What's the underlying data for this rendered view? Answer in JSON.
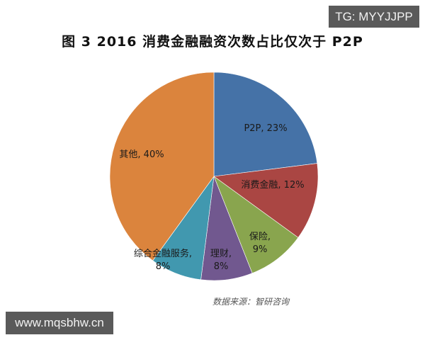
{
  "title": "图 3   2016 消费金融融资次数占比仅次于  P2P",
  "watermarks": {
    "top_right": "TG: MYYJJPP",
    "bottom_left": "www.mqsbhw.cn"
  },
  "source": "数据来源：智研咨询",
  "chart_data": {
    "type": "pie",
    "title": "图 3 2016 消费金融融资次数占比仅次于 P2P",
    "categories": [
      "P2P",
      "消费金融",
      "保险",
      "理财",
      "综合金融服务",
      "其他"
    ],
    "values": [
      23,
      12,
      9,
      8,
      8,
      40
    ],
    "unit": "%",
    "colors": [
      "#4572a7",
      "#aa4643",
      "#89a54e",
      "#71588f",
      "#4198af",
      "#db843d"
    ],
    "labels": [
      "P2P, 23%",
      "消费金融, 12%",
      "保险, 9%",
      "理财, 8%",
      "综合金融服务, 8%",
      "其他, 40%"
    ],
    "legend": "none",
    "source": "数据来源：智研咨询"
  }
}
